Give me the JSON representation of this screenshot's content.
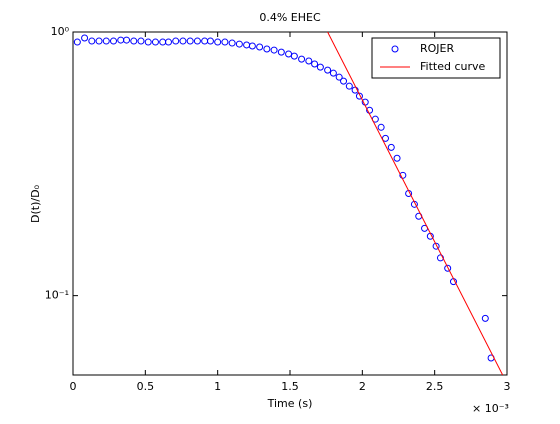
{
  "chart_data": {
    "type": "scatter",
    "title": "0.4% EHEC",
    "x_label": "Time (s)",
    "y_label": "D(t)/D₀",
    "x_multiplier": "× 10⁻³",
    "log_y": true,
    "legend_position": "upper right",
    "xlim": [
      0,
      3
    ],
    "xticks": [
      0,
      0.5,
      1,
      1.5,
      2,
      2.5,
      3
    ],
    "ylim": [
      0.05,
      1
    ],
    "yticks": [
      {
        "value": 1,
        "label": "10⁰"
      },
      {
        "value": 0.1,
        "label": "10⁻¹"
      }
    ],
    "series": [
      {
        "name": "ROJER",
        "color": "#0000ff",
        "marker": "circle",
        "x": [
          0.03,
          0.08,
          0.13,
          0.18,
          0.23,
          0.28,
          0.33,
          0.37,
          0.42,
          0.47,
          0.52,
          0.57,
          0.62,
          0.66,
          0.71,
          0.76,
          0.81,
          0.86,
          0.91,
          0.95,
          1.0,
          1.05,
          1.1,
          1.15,
          1.2,
          1.24,
          1.29,
          1.34,
          1.39,
          1.44,
          1.49,
          1.53,
          1.58,
          1.63,
          1.67,
          1.71,
          1.76,
          1.8,
          1.84,
          1.87,
          1.91,
          1.95,
          1.98,
          2.02,
          2.05,
          2.09,
          2.13,
          2.16,
          2.2,
          2.24,
          2.28,
          2.32,
          2.36,
          2.39,
          2.43,
          2.47,
          2.51,
          2.54,
          2.59,
          2.63,
          2.85,
          2.89
        ],
        "values": [
          0.916,
          0.949,
          0.924,
          0.924,
          0.924,
          0.924,
          0.932,
          0.932,
          0.924,
          0.924,
          0.916,
          0.916,
          0.916,
          0.916,
          0.924,
          0.924,
          0.924,
          0.924,
          0.924,
          0.924,
          0.916,
          0.916,
          0.908,
          0.9,
          0.893,
          0.885,
          0.877,
          0.862,
          0.854,
          0.839,
          0.825,
          0.81,
          0.789,
          0.776,
          0.756,
          0.736,
          0.717,
          0.698,
          0.674,
          0.651,
          0.623,
          0.602,
          0.571,
          0.542,
          0.505,
          0.467,
          0.435,
          0.395,
          0.365,
          0.332,
          0.286,
          0.244,
          0.222,
          0.2,
          0.18,
          0.168,
          0.154,
          0.139,
          0.127,
          0.113,
          0.082,
          0.058
        ]
      },
      {
        "name": "Fitted curve",
        "color": "#ff0000",
        "marker": "line",
        "x": [
          1.76,
          2.97
        ],
        "values": [
          1,
          0.05
        ]
      }
    ]
  }
}
